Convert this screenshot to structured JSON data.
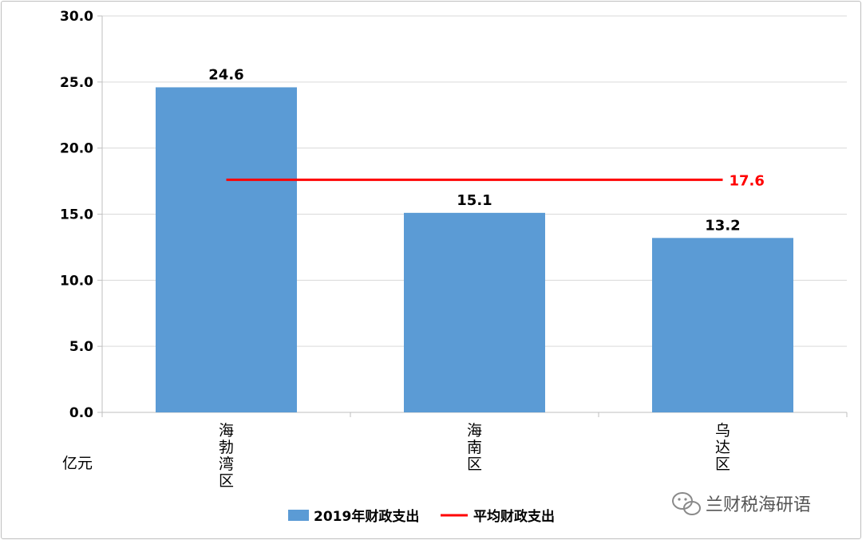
{
  "chart_data": {
    "type": "bar",
    "categories": [
      "海勃湾区",
      "海南区",
      "乌达区"
    ],
    "series": [
      {
        "name": "2019年财政支出",
        "type": "bar",
        "values": [
          24.6,
          15.1,
          13.2
        ],
        "color": "#5b9bd5"
      },
      {
        "name": "平均财政支出",
        "type": "line",
        "value": 17.6,
        "color": "#ff0000"
      }
    ],
    "data_labels": [
      "24.6",
      "15.1",
      "13.2"
    ],
    "avg_label": "17.6",
    "ylim": [
      0,
      30
    ],
    "yticks": [
      "0.0",
      "5.0",
      "10.0",
      "15.0",
      "20.0",
      "25.0",
      "30.0"
    ],
    "ylabel": "亿元",
    "grid": true,
    "legend_position": "bottom"
  },
  "watermark": {
    "text": "兰财税海研语",
    "icon": "wechat-icon"
  }
}
